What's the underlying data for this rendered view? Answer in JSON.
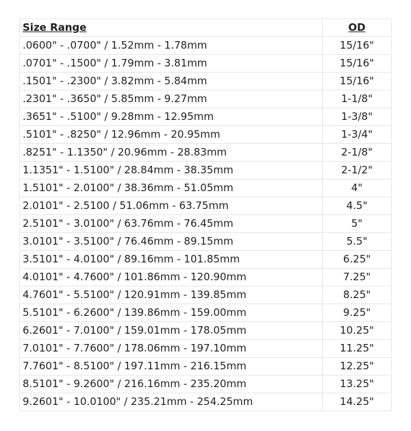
{
  "table": {
    "headers": {
      "size_range": "Size Range",
      "od": "OD"
    },
    "rows": [
      {
        "size_range": ".0600\" - .0700\" / 1.52mm - 1.78mm",
        "od": "15/16\""
      },
      {
        "size_range": ".0701\" - .1500\" / 1.79mm - 3.81mm",
        "od": "15/16\""
      },
      {
        "size_range": ".1501\" - .2300\" / 3.82mm - 5.84mm",
        "od": "15/16\""
      },
      {
        "size_range": ".2301\" - .3650\" / 5.85mm - 9.27mm",
        "od": "1-1/8\""
      },
      {
        "size_range": ".3651\" - .5100\" / 9.28mm - 12.95mm",
        "od": "1-3/8\""
      },
      {
        "size_range": ".5101\" - .8250\" / 12.96mm - 20.95mm",
        "od": "1-3/4\""
      },
      {
        "size_range": ".8251\" - 1.1350\" / 20.96mm - 28.83mm",
        "od": "2-1/8\""
      },
      {
        "size_range": "1.1351\" - 1.5100\" / 28.84mm - 38.35mm",
        "od": "2-1/2\""
      },
      {
        "size_range": "1.5101\" - 2.0100\" / 38.36mm - 51.05mm",
        "od": "4\""
      },
      {
        "size_range": "2.0101\" - 2.5100 / 51.06mm - 63.75mm",
        "od": "4.5\""
      },
      {
        "size_range": "2.5101\" - 3.0100\" / 63.76mm - 76.45mm",
        "od": "5\""
      },
      {
        "size_range": "3.0101\" - 3.5100\" / 76.46mm - 89.15mm",
        "od": "5.5\""
      },
      {
        "size_range": "3.5101\" - 4.0100\" / 89.16mm - 101.85mm",
        "od": "6.25\""
      },
      {
        "size_range": "4.0101\" - 4.7600\" / 101.86mm - 120.90mm",
        "od": "7.25\""
      },
      {
        "size_range": "4.7601\" - 5.5100\" / 120.91mm - 139.85mm",
        "od": "8.25\""
      },
      {
        "size_range": "5.5101\" - 6.2600\" / 139.86mm - 159.00mm",
        "od": "9.25\""
      },
      {
        "size_range": "6.2601\" - 7.0100\" / 159.01mm - 178.05mm",
        "od": "10.25\""
      },
      {
        "size_range": "7.0101\" - 7.7600\" / 178.06mm - 197.10mm",
        "od": "11.25\""
      },
      {
        "size_range": "7.7601\" - 8.5100\" / 197.11mm - 216.15mm",
        "od": "12.25\""
      },
      {
        "size_range": "8.5101\" - 9.2600\" / 216.16mm - 235.20mm",
        "od": "13.25\""
      },
      {
        "size_range": "9.2601\" - 10.0100\" / 235.21mm - 254.25mm",
        "od": "14.25\""
      }
    ]
  }
}
